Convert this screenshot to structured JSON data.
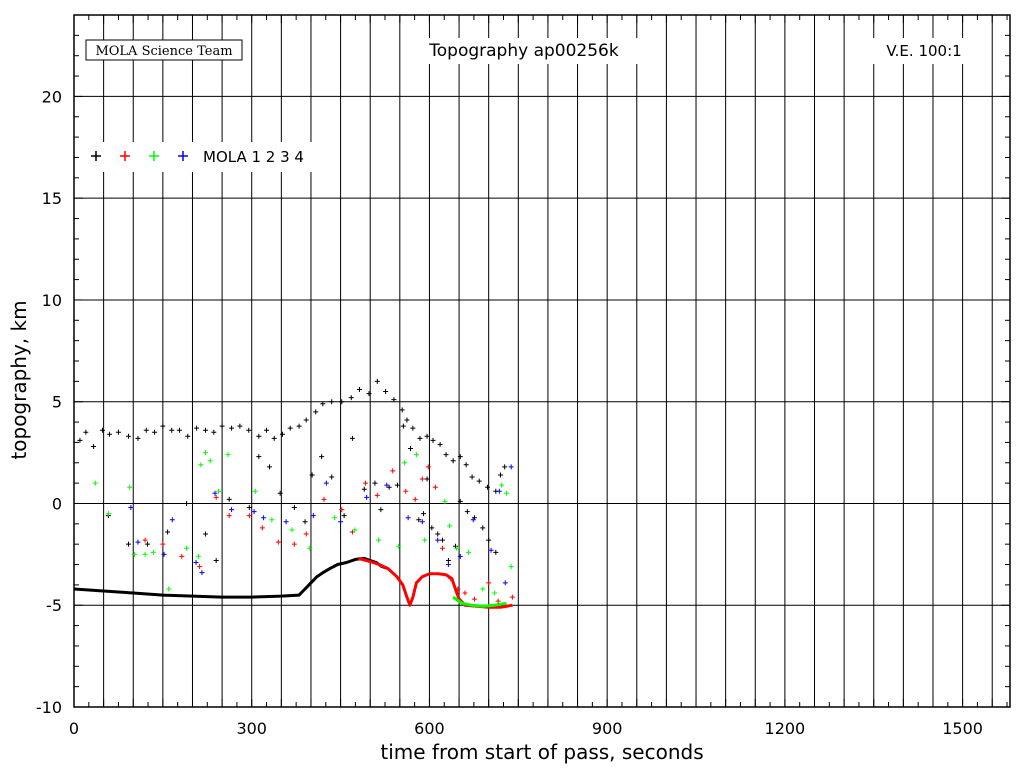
{
  "chart_data": {
    "type": "scatter",
    "title": "Topography ap00256k",
    "credit": "MOLA Science Team",
    "annotation": "V.E. 100:1",
    "xlabel": "time from start of pass, seconds",
    "ylabel": "topography, km",
    "xlim": [
      0,
      1580
    ],
    "ylim": [
      -10,
      24
    ],
    "x_ticks": [
      0,
      300,
      600,
      900,
      1200,
      1500
    ],
    "y_ticks": [
      -10,
      -5,
      0,
      5,
      10,
      15,
      20
    ],
    "grid": true,
    "legend": {
      "label": "MOLA 1 2 3 4",
      "placement": "upper-left"
    },
    "series": [
      {
        "name": "1",
        "color": "#000000",
        "points": [
          [
            10,
            3.1
          ],
          [
            20,
            3.5
          ],
          [
            33,
            2.8
          ],
          [
            48,
            3.6
          ],
          [
            60,
            3.4
          ],
          [
            75,
            3.5
          ],
          [
            92,
            3.3
          ],
          [
            108,
            3.2
          ],
          [
            122,
            3.6
          ],
          [
            136,
            3.5
          ],
          [
            150,
            3.8
          ],
          [
            165,
            3.6
          ],
          [
            178,
            3.6
          ],
          [
            192,
            3.3
          ],
          [
            207,
            3.7
          ],
          [
            222,
            3.6
          ],
          [
            236,
            3.5
          ],
          [
            250,
            3.8
          ],
          [
            266,
            3.7
          ],
          [
            280,
            3.8
          ],
          [
            295,
            3.6
          ],
          [
            312,
            3.3
          ],
          [
            325,
            3.6
          ],
          [
            338,
            3.2
          ],
          [
            352,
            3.4
          ],
          [
            365,
            3.7
          ],
          [
            380,
            3.8
          ],
          [
            392,
            4.1
          ],
          [
            408,
            4.5
          ],
          [
            420,
            4.9
          ],
          [
            435,
            5.0
          ],
          [
            452,
            5.0
          ],
          [
            468,
            5.2
          ],
          [
            482,
            5.6
          ],
          [
            498,
            5.4
          ],
          [
            512,
            6.0
          ],
          [
            526,
            5.5
          ],
          [
            540,
            5.1
          ],
          [
            554,
            4.6
          ],
          [
            562,
            4.1
          ],
          [
            572,
            3.7
          ],
          [
            584,
            3.2
          ],
          [
            596,
            3.3
          ],
          [
            606,
            3.1
          ],
          [
            618,
            2.9
          ],
          [
            628,
            2.4
          ],
          [
            640,
            2.1
          ],
          [
            652,
            2.3
          ],
          [
            662,
            1.9
          ],
          [
            672,
            1.3
          ],
          [
            684,
            1.1
          ],
          [
            698,
            0.8
          ],
          [
            712,
            0.6
          ],
          [
            720,
            1.4
          ],
          [
            727,
            1.8
          ],
          [
            58,
            -0.6
          ],
          [
            92,
            -2.0
          ],
          [
            124,
            -2.0
          ],
          [
            158,
            -1.4
          ],
          [
            190,
            0.0
          ],
          [
            222,
            -1.5
          ],
          [
            240,
            -2.8
          ],
          [
            262,
            0.2
          ],
          [
            296,
            -0.2
          ],
          [
            312,
            2.3
          ],
          [
            330,
            1.8
          ],
          [
            348,
            0.5
          ],
          [
            372,
            -0.2
          ],
          [
            390,
            -0.9
          ],
          [
            402,
            1.4
          ],
          [
            418,
            2.3
          ],
          [
            435,
            1.3
          ],
          [
            456,
            -0.6
          ],
          [
            470,
            3.2
          ],
          [
            490,
            0.7
          ],
          [
            508,
            1.0
          ],
          [
            518,
            -0.3
          ],
          [
            532,
            0.8
          ],
          [
            546,
            0.9
          ],
          [
            556,
            3.8
          ],
          [
            568,
            2.7
          ],
          [
            582,
            -0.8
          ],
          [
            590,
            -0.5
          ],
          [
            596,
            1.2
          ],
          [
            604,
            -1.2
          ],
          [
            614,
            -1.5
          ],
          [
            622,
            -1.8
          ],
          [
            632,
            -2.8
          ],
          [
            644,
            -2.1
          ],
          [
            652,
            0.1
          ],
          [
            664,
            -0.4
          ],
          [
            676,
            -0.7
          ],
          [
            690,
            -1.2
          ],
          [
            700,
            -1.8
          ],
          [
            712,
            -2.4
          ]
        ],
        "profile": [
          [
            0,
            -4.2
          ],
          [
            50,
            -4.3
          ],
          [
            100,
            -4.4
          ],
          [
            150,
            -4.5
          ],
          [
            200,
            -4.55
          ],
          [
            250,
            -4.6
          ],
          [
            300,
            -4.6
          ],
          [
            350,
            -4.55
          ],
          [
            380,
            -4.5
          ],
          [
            390,
            -4.2
          ],
          [
            400,
            -3.9
          ],
          [
            410,
            -3.6
          ],
          [
            420,
            -3.4
          ],
          [
            432,
            -3.2
          ],
          [
            445,
            -3.0
          ],
          [
            460,
            -2.9
          ],
          [
            475,
            -2.75
          ],
          [
            490,
            -2.7
          ],
          [
            500,
            -2.8
          ],
          [
            510,
            -2.9
          ],
          [
            520,
            -3.1
          ],
          [
            530,
            -3.2
          ]
        ]
      },
      {
        "name": "2",
        "color": "#ff0000",
        "points": [
          [
            120,
            -1.8
          ],
          [
            150,
            -2.0
          ],
          [
            182,
            -2.6
          ],
          [
            212,
            -3.1
          ],
          [
            240,
            0.3
          ],
          [
            262,
            -0.6
          ],
          [
            296,
            -0.6
          ],
          [
            318,
            -1.2
          ],
          [
            345,
            -1.9
          ],
          [
            372,
            -2.0
          ],
          [
            392,
            -1.5
          ],
          [
            422,
            0.2
          ],
          [
            452,
            -0.3
          ],
          [
            470,
            -1.4
          ],
          [
            492,
            1.0
          ],
          [
            512,
            0.4
          ],
          [
            538,
            1.6
          ],
          [
            560,
            0.6
          ],
          [
            576,
            0.2
          ],
          [
            588,
            1.2
          ],
          [
            598,
            1.8
          ],
          [
            610,
            0.8
          ],
          [
            622,
            -2.2
          ],
          [
            636,
            -3.7
          ],
          [
            648,
            -4.2
          ],
          [
            660,
            -4.4
          ],
          [
            676,
            -4.7
          ],
          [
            700,
            -3.9
          ],
          [
            716,
            -4.8
          ],
          [
            740,
            -4.6
          ]
        ],
        "profile": [
          [
            480,
            -2.7
          ],
          [
            500,
            -2.85
          ],
          [
            515,
            -3.0
          ],
          [
            530,
            -3.2
          ],
          [
            545,
            -3.6
          ],
          [
            555,
            -4.0
          ],
          [
            562,
            -4.6
          ],
          [
            567,
            -5.0
          ],
          [
            572,
            -4.6
          ],
          [
            578,
            -3.9
          ],
          [
            588,
            -3.6
          ],
          [
            600,
            -3.45
          ],
          [
            615,
            -3.45
          ],
          [
            628,
            -3.5
          ],
          [
            638,
            -3.7
          ],
          [
            645,
            -4.3
          ],
          [
            650,
            -4.7
          ],
          [
            660,
            -5.0
          ],
          [
            680,
            -5.05
          ],
          [
            700,
            -5.1
          ],
          [
            720,
            -5.1
          ],
          [
            740,
            -5.0
          ]
        ]
      },
      {
        "name": "3",
        "color": "#00ff00",
        "points": [
          [
            36,
            1.0
          ],
          [
            58,
            -0.5
          ],
          [
            94,
            0.8
          ],
          [
            102,
            -2.5
          ],
          [
            120,
            -2.5
          ],
          [
            134,
            -2.4
          ],
          [
            160,
            -4.2
          ],
          [
            190,
            -2.2
          ],
          [
            210,
            -2.6
          ],
          [
            214,
            1.9
          ],
          [
            222,
            2.5
          ],
          [
            230,
            2.1
          ],
          [
            244,
            0.6
          ],
          [
            260,
            2.4
          ],
          [
            306,
            0.6
          ],
          [
            334,
            -0.8
          ],
          [
            368,
            -1.3
          ],
          [
            398,
            -2.2
          ],
          [
            440,
            -0.7
          ],
          [
            474,
            -1.3
          ],
          [
            514,
            -1.8
          ],
          [
            548,
            -2.1
          ],
          [
            558,
            2.0
          ],
          [
            578,
            2.4
          ],
          [
            592,
            -1.8
          ],
          [
            626,
            0.1
          ],
          [
            634,
            -1.1
          ],
          [
            646,
            -2.2
          ],
          [
            666,
            -2.4
          ],
          [
            690,
            -4.2
          ],
          [
            710,
            -4.4
          ],
          [
            722,
            0.9
          ],
          [
            730,
            0.5
          ],
          [
            738,
            -3.1
          ]
        ],
        "profile": [
          [
            640,
            -4.6
          ],
          [
            655,
            -4.9
          ],
          [
            670,
            -5.0
          ],
          [
            690,
            -5.05
          ],
          [
            710,
            -5.0
          ],
          [
            730,
            -4.9
          ]
        ]
      },
      {
        "name": "4",
        "color": "#0000ff",
        "points": [
          [
            96,
            -0.2
          ],
          [
            108,
            -1.9
          ],
          [
            152,
            -2.5
          ],
          [
            166,
            -0.8
          ],
          [
            206,
            -2.9
          ],
          [
            216,
            -3.4
          ],
          [
            238,
            0.5
          ],
          [
            266,
            -0.3
          ],
          [
            304,
            -0.4
          ],
          [
            320,
            -0.7
          ],
          [
            358,
            -0.9
          ],
          [
            404,
            -0.6
          ],
          [
            426,
            1.0
          ],
          [
            450,
            -0.9
          ],
          [
            494,
            0.3
          ],
          [
            528,
            0.9
          ],
          [
            564,
            -0.7
          ],
          [
            588,
            -0.9
          ],
          [
            614,
            -1.8
          ],
          [
            632,
            -3.0
          ],
          [
            652,
            -2.6
          ],
          [
            674,
            -0.8
          ],
          [
            704,
            -2.3
          ],
          [
            718,
            0.6
          ],
          [
            728,
            -3.9
          ],
          [
            738,
            1.8
          ]
        ],
        "profile": []
      }
    ]
  }
}
